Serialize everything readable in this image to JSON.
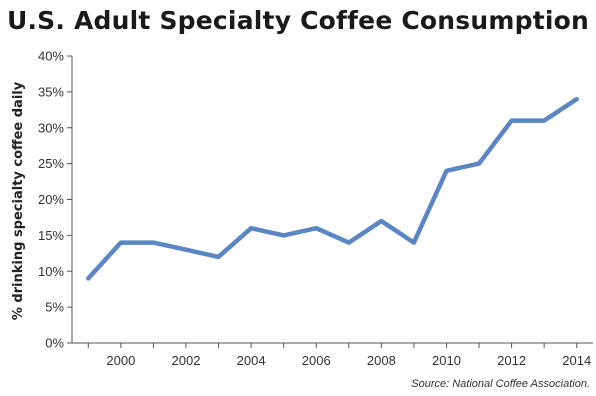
{
  "chart_data": {
    "type": "line",
    "title": "U.S. Adult Specialty Coffee Consumption",
    "xlabel": "",
    "ylabel": "% drinking specialty coffee daily",
    "x": [
      1999,
      2000,
      2001,
      2002,
      2003,
      2004,
      2005,
      2006,
      2007,
      2008,
      2009,
      2010,
      2011,
      2012,
      2013,
      2014
    ],
    "series": [
      {
        "values": [
          9,
          14,
          14,
          13,
          12,
          16,
          15,
          16,
          14,
          17,
          14,
          24,
          25,
          31,
          31,
          34
        ]
      }
    ],
    "xticks": [
      2000,
      2002,
      2004,
      2006,
      2008,
      2010,
      2012,
      2014
    ],
    "yticks": [
      "0%",
      "5%",
      "10%",
      "15%",
      "20%",
      "25%",
      "30%",
      "35%",
      "40%"
    ],
    "ylim": [
      0,
      40
    ],
    "xlim": [
      1998.5,
      2014.5
    ],
    "grid": false,
    "line_color": "#5b86c5",
    "source": "Source: National Coffee Association."
  }
}
